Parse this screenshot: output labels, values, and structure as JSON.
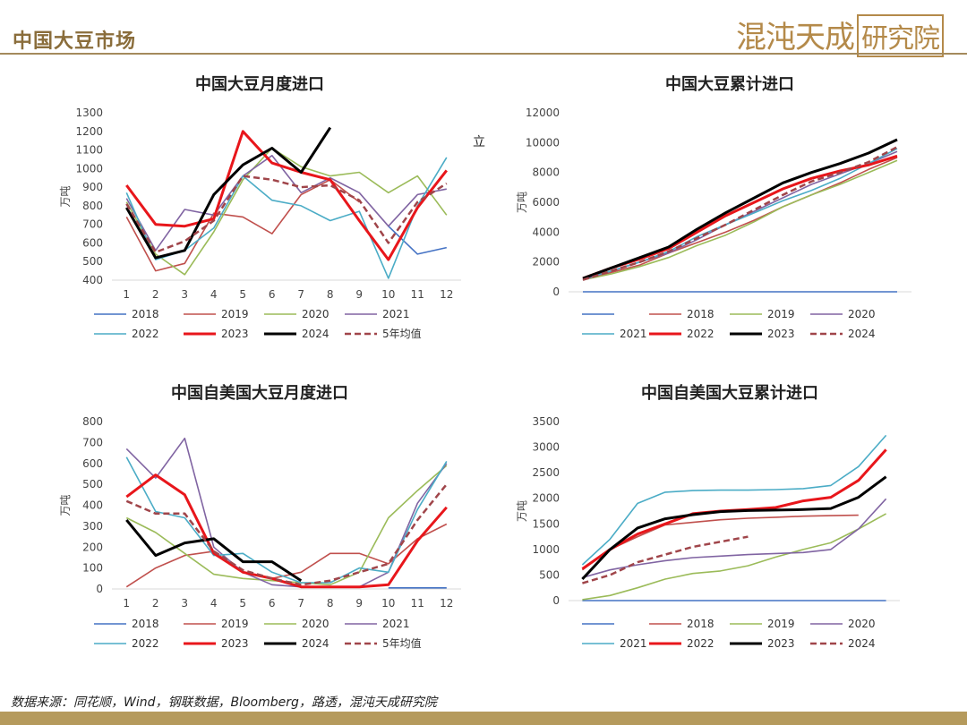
{
  "page": {
    "title": "中国大豆市场",
    "brand_a": "混沌天成",
    "brand_b": "研究院",
    "source": "数据来源：同花顺，Wind，钢联数据，Bloomberg，路透，混沌天成研究院",
    "stray_char": "立"
  },
  "colors": {
    "2018": "#4472C4",
    "2019": "#C0504D",
    "2020": "#9BBB59",
    "2021": "#8064A2",
    "2022": "#4BACC6",
    "2023": "#E8161B",
    "2024": "#000000",
    "avg": "#A0454A"
  },
  "chart_data": [
    {
      "type": "line",
      "title": "中国大豆月度进口",
      "ylabel": "万吨",
      "x": [
        1,
        2,
        3,
        4,
        5,
        6,
        7,
        8,
        9,
        10,
        11,
        12
      ],
      "ylim": [
        400,
        1300
      ],
      "yticks": [
        400,
        500,
        600,
        700,
        800,
        900,
        1000,
        1100,
        1200,
        1300
      ],
      "series": [
        {
          "name": "2018",
          "key": "2018",
          "values": [
            null,
            null,
            null,
            null,
            null,
            null,
            null,
            null,
            null,
            690,
            540,
            575
          ]
        },
        {
          "name": "2019",
          "key": "2019",
          "values": [
            740,
            450,
            490,
            760,
            740,
            650,
            860,
            940,
            820,
            null,
            null,
            null
          ]
        },
        {
          "name": "2020",
          "key": "2020",
          "values": [
            820,
            540,
            430,
            660,
            940,
            1110,
            1010,
            960,
            980,
            870,
            960,
            750
          ]
        },
        {
          "name": "2021",
          "key": "2021",
          "values": [
            840,
            560,
            780,
            750,
            960,
            1070,
            870,
            950,
            870,
            690,
            860,
            890
          ]
        },
        {
          "name": "2022",
          "key": "2022",
          "values": [
            870,
            510,
            560,
            680,
            960,
            830,
            800,
            720,
            770,
            410,
            800,
            1060
          ]
        },
        {
          "name": "2023",
          "key": "2023",
          "values": [
            910,
            700,
            690,
            730,
            1200,
            1030,
            980,
            940,
            720,
            510,
            790,
            990
          ]
        },
        {
          "name": "2024",
          "key": "2024",
          "values": [
            790,
            520,
            560,
            860,
            1020,
            1110,
            980,
            1220,
            null,
            null,
            null,
            null
          ]
        },
        {
          "name": "5年均值",
          "key": "avg",
          "dashed": true,
          "values": [
            810,
            550,
            610,
            720,
            960,
            940,
            900,
            910,
            830,
            600,
            820,
            920
          ]
        }
      ],
      "legend": [
        "2018",
        "2019",
        "2020",
        "2021",
        "2022",
        "2023",
        "2024",
        "5年均值"
      ]
    },
    {
      "type": "line",
      "title": "中国大豆累计进口",
      "ylabel": "万吨",
      "x": [
        1,
        2,
        3,
        4,
        5,
        6,
        7,
        8,
        9,
        10,
        11,
        12
      ],
      "ylim": [
        0,
        12000
      ],
      "yticks": [
        0,
        2000,
        4000,
        6000,
        8000,
        10000,
        12000
      ],
      "series": [
        {
          "name": "",
          "key": "2018",
          "values": [
            0,
            0,
            0,
            0,
            0,
            0,
            0,
            0,
            0,
            0,
            0,
            0
          ]
        },
        {
          "name": "2018",
          "key": "2019",
          "values": [
            800,
            1300,
            1800,
            2600,
            3300,
            4000,
            4800,
            5700,
            6500,
            7300,
            8200,
            9000
          ]
        },
        {
          "name": "2019",
          "key": "2020",
          "values": [
            800,
            1200,
            1700,
            2300,
            3100,
            3800,
            4700,
            5700,
            6500,
            7200,
            8000,
            8800
          ]
        },
        {
          "name": "2020",
          "key": "2021",
          "values": [
            800,
            1400,
            2000,
            2600,
            3500,
            4500,
            5400,
            6300,
            7200,
            7900,
            8600,
            9400
          ]
        },
        {
          "name": "2021",
          "key": "2022",
          "values": [
            900,
            1400,
            2000,
            2700,
            3700,
            4500,
            5300,
            6100,
            6800,
            7600,
            8600,
            9600
          ]
        },
        {
          "name": "2022",
          "key": "2023",
          "values": [
            900,
            1600,
            2200,
            2900,
            4000,
            5100,
            6000,
            6900,
            7600,
            8100,
            8500,
            9100
          ]
        },
        {
          "name": "2023",
          "key": "2024",
          "values": [
            900,
            1600,
            2300,
            3000,
            4200,
            5300,
            6300,
            7300,
            8000,
            8600,
            9300,
            10200
          ]
        },
        {
          "name": "2024",
          "key": "avg",
          "dashed": true,
          "values": [
            800,
            1400,
            2000,
            2700,
            3600,
            4500,
            5500,
            6500,
            7400,
            8000,
            8700,
            9700
          ]
        }
      ],
      "legend": [
        "",
        "2018",
        "2019",
        "2020",
        "2021",
        "2022",
        "2023",
        "2024"
      ]
    },
    {
      "type": "line",
      "title": "中国自美国大豆月度进口",
      "ylabel": "万吨",
      "x": [
        1,
        2,
        3,
        4,
        5,
        6,
        7,
        8,
        9,
        10,
        11,
        12
      ],
      "ylim": [
        0,
        800
      ],
      "yticks": [
        0,
        100,
        200,
        300,
        400,
        500,
        600,
        700,
        800
      ],
      "series": [
        {
          "name": "2018",
          "key": "2018",
          "values": [
            null,
            null,
            null,
            null,
            null,
            null,
            null,
            null,
            null,
            5,
            5,
            5
          ]
        },
        {
          "name": "2019",
          "key": "2019",
          "values": [
            10,
            100,
            160,
            180,
            80,
            50,
            80,
            170,
            170,
            120,
            240,
            310
          ]
        },
        {
          "name": "2020",
          "key": "2020",
          "values": [
            340,
            270,
            170,
            70,
            50,
            40,
            30,
            20,
            80,
            340,
            470,
            590
          ]
        },
        {
          "name": "2021",
          "key": "2021",
          "values": [
            670,
            530,
            720,
            200,
            80,
            20,
            10,
            10,
            10,
            80,
            410,
            600
          ]
        },
        {
          "name": "2022",
          "key": "2022",
          "values": [
            630,
            370,
            340,
            160,
            170,
            80,
            30,
            30,
            100,
            80,
            380,
            610
          ]
        },
        {
          "name": "2023",
          "key": "2023",
          "values": [
            440,
            545,
            450,
            170,
            80,
            50,
            10,
            10,
            10,
            20,
            230,
            390
          ]
        },
        {
          "name": "2024",
          "key": "2024",
          "values": [
            330,
            160,
            220,
            240,
            130,
            130,
            40,
            null,
            null,
            null,
            null,
            null
          ]
        },
        {
          "name": "5年均值",
          "key": "avg",
          "dashed": true,
          "values": [
            420,
            360,
            360,
            180,
            90,
            50,
            20,
            40,
            80,
            120,
            330,
            500
          ]
        }
      ],
      "legend": [
        "2018",
        "2019",
        "2020",
        "2021",
        "2022",
        "2023",
        "2024",
        "5年均值"
      ]
    },
    {
      "type": "line",
      "title": "中国自美国大豆累计进口",
      "ylabel": "万吨",
      "x": [
        1,
        2,
        3,
        4,
        5,
        6,
        7,
        8,
        9,
        10,
        11,
        12
      ],
      "ylim": [
        0,
        3500
      ],
      "yticks": [
        0,
        500,
        1000,
        1500,
        2000,
        2500,
        3000,
        3500
      ],
      "series": [
        {
          "name": "",
          "key": "2018",
          "values": [
            0,
            0,
            0,
            0,
            0,
            0,
            0,
            0,
            0,
            0,
            0,
            0
          ]
        },
        {
          "name": "2018",
          "key": "2019",
          "values": [
            600,
            1000,
            1250,
            1480,
            1530,
            1580,
            1610,
            1630,
            1650,
            1660,
            1670,
            null
          ]
        },
        {
          "name": "2019",
          "key": "2020",
          "values": [
            20,
            100,
            250,
            420,
            530,
            580,
            680,
            850,
            1000,
            1130,
            1400,
            1700
          ]
        },
        {
          "name": "2020",
          "key": "2021",
          "values": [
            450,
            600,
            700,
            780,
            840,
            870,
            900,
            920,
            940,
            1000,
            1400,
            1990
          ]
        },
        {
          "name": "2021",
          "key": "2022",
          "values": [
            700,
            1200,
            1900,
            2120,
            2150,
            2160,
            2160,
            2170,
            2190,
            2250,
            2620,
            3230
          ]
        },
        {
          "name": "2022",
          "key": "2023",
          "values": [
            620,
            1000,
            1300,
            1500,
            1700,
            1750,
            1780,
            1820,
            1950,
            2020,
            2350,
            2950
          ]
        },
        {
          "name": "2023",
          "key": "2024",
          "values": [
            420,
            1000,
            1420,
            1600,
            1680,
            1740,
            1760,
            1770,
            1780,
            1800,
            2020,
            2420
          ]
        },
        {
          "name": "2024",
          "key": "avg",
          "dashed": true,
          "values": [
            340,
            500,
            750,
            900,
            1050,
            1150,
            1250,
            null,
            null,
            null,
            null,
            null
          ]
        }
      ],
      "legend": [
        "",
        "2018",
        "2019",
        "2020",
        "2021",
        "2022",
        "2023",
        "2024"
      ]
    }
  ]
}
